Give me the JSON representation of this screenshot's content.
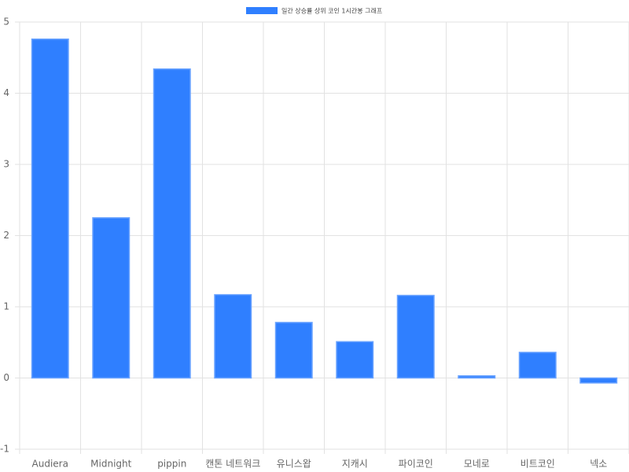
{
  "chart_data": {
    "type": "bar",
    "categories": [
      "Audiera",
      "Midnight",
      "pippin",
      "캔톤 네트워크",
      "유니스왑",
      "지캐시",
      "파이코인",
      "모네로",
      "비트코인",
      "넥소"
    ],
    "series": [
      {
        "name": "일간 상승률 상위 코인 1시간봉 그래프",
        "color": "#2f7fff",
        "values": [
          4.76,
          2.25,
          4.34,
          1.17,
          0.78,
          0.51,
          1.16,
          0.03,
          0.36,
          -0.07
        ]
      }
    ],
    "ylim": [
      -1,
      5
    ],
    "yticks": [
      -1,
      0,
      1,
      2,
      3,
      4,
      5
    ],
    "grid": true,
    "legend": "top"
  }
}
